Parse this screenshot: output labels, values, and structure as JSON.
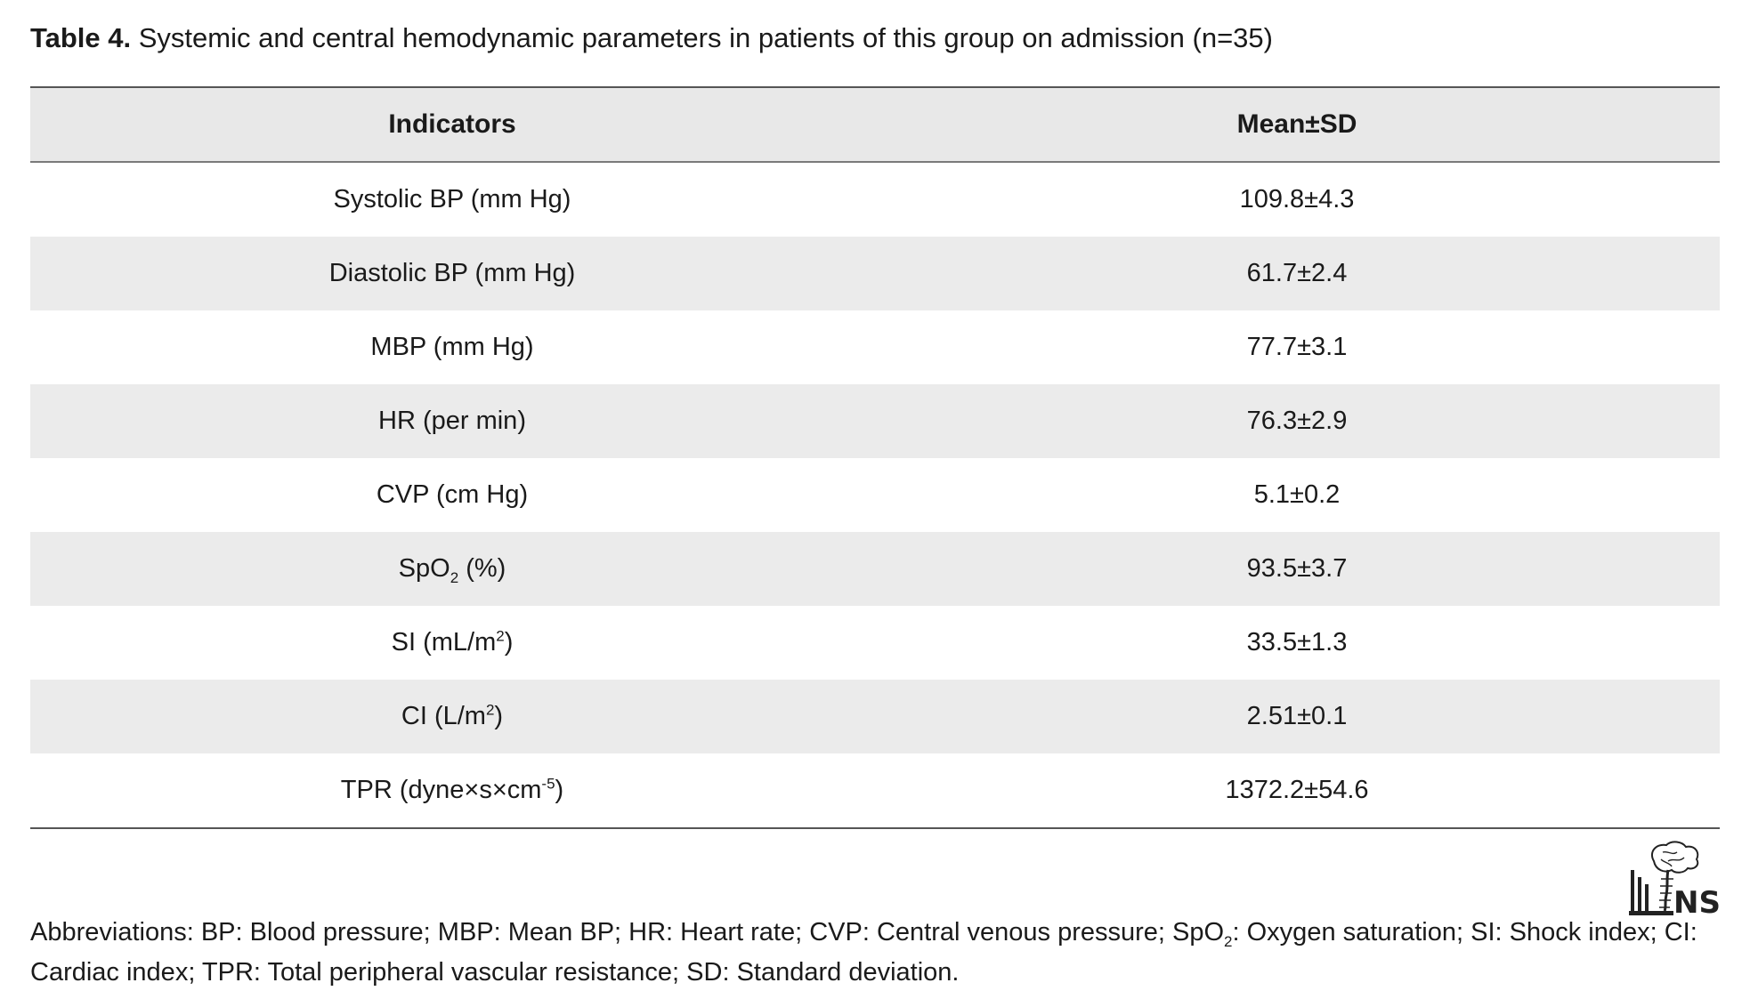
{
  "caption": {
    "label": "Table 4.",
    "text": " Systemic and central hemodynamic parameters in patients of this group on admission (n=35)"
  },
  "table": {
    "headers": [
      "Indicators",
      "Mean±SD"
    ],
    "rows": [
      {
        "pre": "Systolic BP (mm Hg)",
        "script": "",
        "post": "",
        "value": "109.8±4.3"
      },
      {
        "pre": "Diastolic BP (mm Hg)",
        "script": "",
        "post": "",
        "value": "61.7±2.4"
      },
      {
        "pre": "MBP (mm Hg)",
        "script": "",
        "post": "",
        "value": "77.7±3.1"
      },
      {
        "pre": "HR (per min)",
        "script": "",
        "post": "",
        "value": "76.3±2.9"
      },
      {
        "pre": "CVP (cm Hg)",
        "script": "",
        "post": "",
        "value": "5.1±0.2"
      },
      {
        "pre": "SpO",
        "script": "2",
        "post": " (%)",
        "value": "93.5±3.7"
      },
      {
        "pre": "SI (mL/m",
        "script": "2",
        "post": ")",
        "value": "33.5±1.3"
      },
      {
        "pre": "CI (L/m",
        "script": "2",
        "post": ")",
        "value": "2.51±0.1"
      },
      {
        "pre": "TPR (dyne×s×cm",
        "script": "-5",
        "post": ")",
        "value": "1372.2±54.6"
      }
    ]
  },
  "logo": {
    "text": "NS",
    "icon": "brain-logo-icon"
  },
  "footnote": {
    "part1": "Abbreviations: BP: Blood pressure; MBP: Mean BP; HR: Heart rate; CVP: Central venous pressure; SpO",
    "sub": "2",
    "part2": ": Oxygen saturation; SI: Shock index; CI: Cardiac index; TPR: Total peripheral vascular resistance; SD: Standard deviation."
  }
}
